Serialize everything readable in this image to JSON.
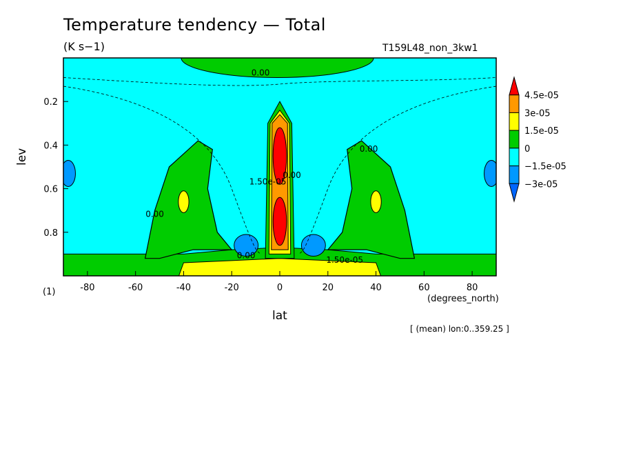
{
  "title": "Temperature tendency — Total",
  "units": "(K s−1)",
  "run_name": "T159L48_non_3kw1",
  "footer_left": "(1)",
  "mean_note": "[ (mean) lon:0..359.25 ]",
  "chart_data": {
    "type": "contour",
    "xlabel": "lat",
    "xunits": "(degrees_north)",
    "ylabel": "lev",
    "xlim": [
      -90,
      90
    ],
    "ylim": [
      1.0,
      0.0
    ],
    "xticks": [
      -80,
      -60,
      -40,
      -20,
      0,
      20,
      40,
      60,
      80
    ],
    "yticks": [
      0.2,
      0.4,
      0.6,
      0.8
    ],
    "colorbar": {
      "levels": [
        "4.5e-05",
        "3e-05",
        "1.5e-05",
        "0",
        "−1.5e-05",
        "−3e-05"
      ],
      "colors": [
        "#ff0000",
        "#ff9900",
        "#ffff00",
        "#00cc00",
        "#00ffff",
        "#0099ff",
        "#0066ff"
      ]
    },
    "contour_labels": [
      {
        "text": "0.00",
        "lat": -8,
        "lev": 0.08
      },
      {
        "text": "0.00",
        "lat": 37,
        "lev": 0.43
      },
      {
        "text": "0.00",
        "lat": -52,
        "lev": 0.73
      },
      {
        "text": "0.00",
        "lat": -14,
        "lev": 0.92
      },
      {
        "text": "0.00",
        "lat": 5,
        "lev": 0.55
      },
      {
        "text": "1.50e-05",
        "lat": 27,
        "lev": 0.94
      },
      {
        "text": "1.50e-05",
        "lat": -5,
        "lev": 0.58
      }
    ],
    "features": [
      {
        "kind": "max",
        "lat": 0,
        "lev": 0.45,
        "level": "4.5e-05"
      },
      {
        "kind": "max",
        "lat": 0,
        "lev": 0.75,
        "level": "4.5e-05"
      },
      {
        "kind": "local_max",
        "lat": -40,
        "lev": 0.66,
        "level": "1.5e-05"
      },
      {
        "kind": "local_max",
        "lat": 40,
        "lev": 0.66,
        "level": "1.5e-05"
      },
      {
        "kind": "min",
        "lat": -14,
        "lev": 0.86,
        "level": "−1.5e-05"
      },
      {
        "kind": "min",
        "lat": 14,
        "lev": 0.86,
        "level": "−1.5e-05"
      },
      {
        "kind": "min",
        "lat": -86,
        "lev": 0.53,
        "level": "−1.5e-05"
      },
      {
        "kind": "min",
        "lat": 86,
        "lev": 0.53,
        "level": "−1.5e-05"
      }
    ]
  }
}
